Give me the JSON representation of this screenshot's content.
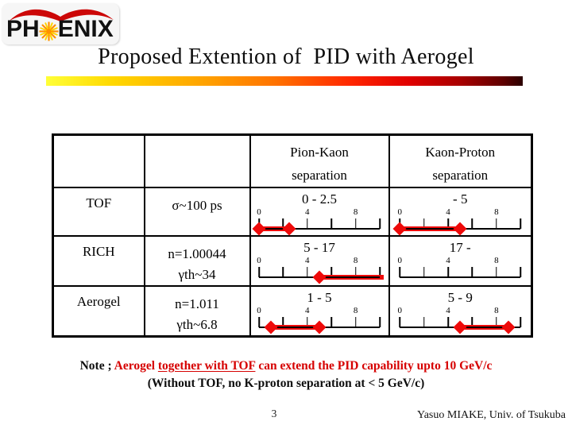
{
  "colors": {
    "bar_red": "#ee0a0a",
    "note_red": "#d60000",
    "logo_red": "#cc0707",
    "star_orange": "#ff9000",
    "star_yellow": "#ffd400"
  },
  "logo": {
    "brand_left": "PH",
    "brand_right": "ENIX",
    "star_icon": "sunburst"
  },
  "title": "Proposed Extention of  PID with Aerogel",
  "table": {
    "headers": {
      "pion_kaon_line1": "Pion-Kaon",
      "pion_kaon_line2": "separation",
      "kaon_proton_line1": "Kaon-Proton",
      "kaon_proton_line2": "separation"
    },
    "ruler": {
      "min": 0,
      "max": 10,
      "tick_step": 2,
      "tick_labels": [
        0,
        4,
        8
      ]
    },
    "rows": [
      {
        "detector": "TOF",
        "parameters": [
          "σ~100 ps"
        ],
        "pion_kaon": {
          "range_label": "0 - 2.5",
          "bar": {
            "start": 0,
            "end": 2.5
          }
        },
        "kaon_proton": {
          "range_label": "- 5",
          "bar": {
            "start": 0,
            "end": 5
          }
        }
      },
      {
        "detector": "RICH",
        "parameters": [
          "n=1.00044",
          "γth~34"
        ],
        "pion_kaon": {
          "range_label": "5 - 17",
          "bar": {
            "start": 5,
            "end": 17
          }
        },
        "kaon_proton": {
          "range_label": "17 -",
          "bar": null
        }
      },
      {
        "detector": "Aerogel",
        "parameters": [
          "n=1.011",
          "γth~6.8"
        ],
        "pion_kaon": {
          "range_label": "1 - 5",
          "bar": {
            "start": 1,
            "end": 5
          }
        },
        "kaon_proton": {
          "range_label": "5 - 9",
          "bar": {
            "start": 5,
            "end": 9
          }
        }
      }
    ]
  },
  "note": {
    "prefix": "Note ; ",
    "red_before_underline": "Aerogel ",
    "red_underlined": "together with TOF",
    "red_after_underline": " can extend the PID capability upto 10 GeV/c",
    "line2": "(Without TOF, no K-proton separation at < 5 GeV/c)"
  },
  "footer": {
    "page_number": "3",
    "credit": "Yasuo MIAKE, Univ. of Tsukuba"
  }
}
